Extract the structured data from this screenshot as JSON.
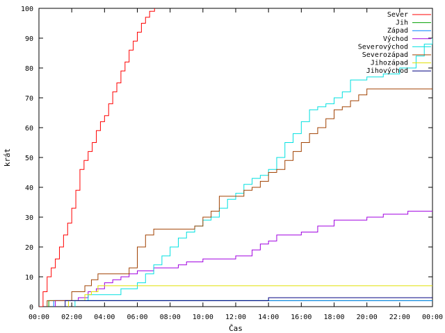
{
  "chart_data": {
    "type": "line",
    "step": true,
    "xlabel": "Čas",
    "ylabel": "krát",
    "xlim": [
      0,
      24
    ],
    "ylim": [
      0,
      100
    ],
    "grid": false,
    "legend_position": "top-right",
    "x_tick_labels": [
      "00:00",
      "02:00",
      "04:00",
      "06:00",
      "08:00",
      "10:00",
      "12:00",
      "14:00",
      "16:00",
      "18:00",
      "20:00",
      "22:00",
      "00:00"
    ],
    "x_tick_values": [
      0,
      2,
      4,
      6,
      8,
      10,
      12,
      14,
      16,
      18,
      20,
      22,
      24
    ],
    "y_tick_values": [
      0,
      10,
      20,
      30,
      40,
      50,
      60,
      70,
      80,
      90,
      100
    ],
    "series": [
      {
        "name": "Sever",
        "color": "#ff0000",
        "points": [
          [
            0,
            0
          ],
          [
            0.25,
            5
          ],
          [
            0.5,
            10
          ],
          [
            0.75,
            13
          ],
          [
            1.0,
            16
          ],
          [
            1.25,
            20
          ],
          [
            1.5,
            24
          ],
          [
            1.75,
            28
          ],
          [
            2.0,
            33
          ],
          [
            2.25,
            39
          ],
          [
            2.5,
            46
          ],
          [
            2.75,
            49
          ],
          [
            3.0,
            52
          ],
          [
            3.25,
            55
          ],
          [
            3.5,
            59
          ],
          [
            3.75,
            62
          ],
          [
            4.0,
            64
          ],
          [
            4.25,
            68
          ],
          [
            4.5,
            72
          ],
          [
            4.75,
            75
          ],
          [
            5.0,
            79
          ],
          [
            5.25,
            82
          ],
          [
            5.5,
            86
          ],
          [
            5.75,
            89
          ],
          [
            6.0,
            92
          ],
          [
            6.25,
            95
          ],
          [
            6.5,
            97
          ],
          [
            6.75,
            99
          ],
          [
            7.05,
            100
          ]
        ]
      },
      {
        "name": "Jih",
        "color": "#00a000",
        "points": [
          [
            0.6,
            0
          ],
          [
            0.6,
            2
          ],
          [
            24,
            2
          ]
        ]
      },
      {
        "name": "Západ",
        "color": "#0080ff",
        "points": [
          [
            0.9,
            0
          ],
          [
            0.9,
            2
          ],
          [
            24,
            2
          ]
        ]
      },
      {
        "name": "Východ",
        "color": "#a000e0",
        "points": [
          [
            1.0,
            0
          ],
          [
            1.0,
            2
          ],
          [
            2.2,
            2
          ],
          [
            2.4,
            3
          ],
          [
            3.0,
            5
          ],
          [
            3.5,
            6
          ],
          [
            4.0,
            8
          ],
          [
            4.5,
            9
          ],
          [
            5.0,
            10
          ],
          [
            5.5,
            11
          ],
          [
            6.0,
            12
          ],
          [
            7.0,
            13
          ],
          [
            8.5,
            14
          ],
          [
            9.0,
            15
          ],
          [
            10.0,
            16
          ],
          [
            12.0,
            17
          ],
          [
            13.0,
            19
          ],
          [
            13.5,
            21
          ],
          [
            14.0,
            22
          ],
          [
            14.5,
            24
          ],
          [
            16.0,
            25
          ],
          [
            17.0,
            27
          ],
          [
            18.0,
            29
          ],
          [
            20.0,
            30
          ],
          [
            21.0,
            31
          ],
          [
            22.5,
            32
          ],
          [
            24,
            32
          ]
        ]
      },
      {
        "name": "Severovýchod",
        "color": "#00e0e0",
        "points": [
          [
            2.2,
            0
          ],
          [
            2.2,
            2
          ],
          [
            3.0,
            4
          ],
          [
            4.0,
            4
          ],
          [
            5.0,
            6
          ],
          [
            6.0,
            8
          ],
          [
            6.5,
            11
          ],
          [
            7.0,
            14
          ],
          [
            7.5,
            17
          ],
          [
            8.0,
            20
          ],
          [
            8.5,
            23
          ],
          [
            9.0,
            25
          ],
          [
            9.5,
            27
          ],
          [
            10.0,
            29
          ],
          [
            10.5,
            30
          ],
          [
            11.0,
            33
          ],
          [
            11.5,
            36
          ],
          [
            12.0,
            38
          ],
          [
            12.5,
            41
          ],
          [
            13.0,
            43
          ],
          [
            13.5,
            44
          ],
          [
            14.0,
            46
          ],
          [
            14.5,
            50
          ],
          [
            15.0,
            55
          ],
          [
            15.5,
            58
          ],
          [
            16.0,
            62
          ],
          [
            16.5,
            66
          ],
          [
            17.0,
            67
          ],
          [
            17.5,
            68
          ],
          [
            18.0,
            70
          ],
          [
            18.5,
            72
          ],
          [
            19.0,
            76
          ],
          [
            20.0,
            77
          ],
          [
            21.0,
            78
          ],
          [
            22.0,
            80
          ],
          [
            23.0,
            84
          ],
          [
            23.5,
            88
          ],
          [
            24.0,
            90
          ]
        ]
      },
      {
        "name": "Severozápad",
        "color": "#a04000",
        "points": [
          [
            0.5,
            0
          ],
          [
            0.5,
            2
          ],
          [
            2.0,
            5
          ],
          [
            2.8,
            7
          ],
          [
            3.2,
            9
          ],
          [
            3.6,
            11
          ],
          [
            5.0,
            11
          ],
          [
            5.5,
            13
          ],
          [
            6.0,
            20
          ],
          [
            6.5,
            24
          ],
          [
            7.0,
            26
          ],
          [
            8.0,
            26
          ],
          [
            9.5,
            27
          ],
          [
            10.0,
            30
          ],
          [
            10.5,
            32
          ],
          [
            11.0,
            37
          ],
          [
            12.0,
            37
          ],
          [
            12.5,
            39
          ],
          [
            13.0,
            40
          ],
          [
            13.5,
            42
          ],
          [
            14.0,
            45
          ],
          [
            14.5,
            46
          ],
          [
            15.0,
            49
          ],
          [
            15.5,
            52
          ],
          [
            16.0,
            55
          ],
          [
            16.5,
            58
          ],
          [
            17.0,
            60
          ],
          [
            17.5,
            63
          ],
          [
            18.0,
            66
          ],
          [
            18.5,
            67
          ],
          [
            19.0,
            69
          ],
          [
            19.5,
            71
          ],
          [
            20.0,
            73
          ],
          [
            24.0,
            73
          ]
        ]
      },
      {
        "name": "Jihozápad",
        "color": "#e0e000",
        "points": [
          [
            1.8,
            0
          ],
          [
            1.8,
            2
          ],
          [
            2.8,
            4
          ],
          [
            3.2,
            5
          ],
          [
            3.6,
            7
          ],
          [
            24,
            7
          ]
        ]
      },
      {
        "name": "Jihovýchod",
        "color": "#000080",
        "points": [
          [
            1.6,
            0
          ],
          [
            1.6,
            2
          ],
          [
            13.5,
            2
          ],
          [
            14.0,
            3
          ],
          [
            24,
            3
          ]
        ]
      }
    ]
  }
}
